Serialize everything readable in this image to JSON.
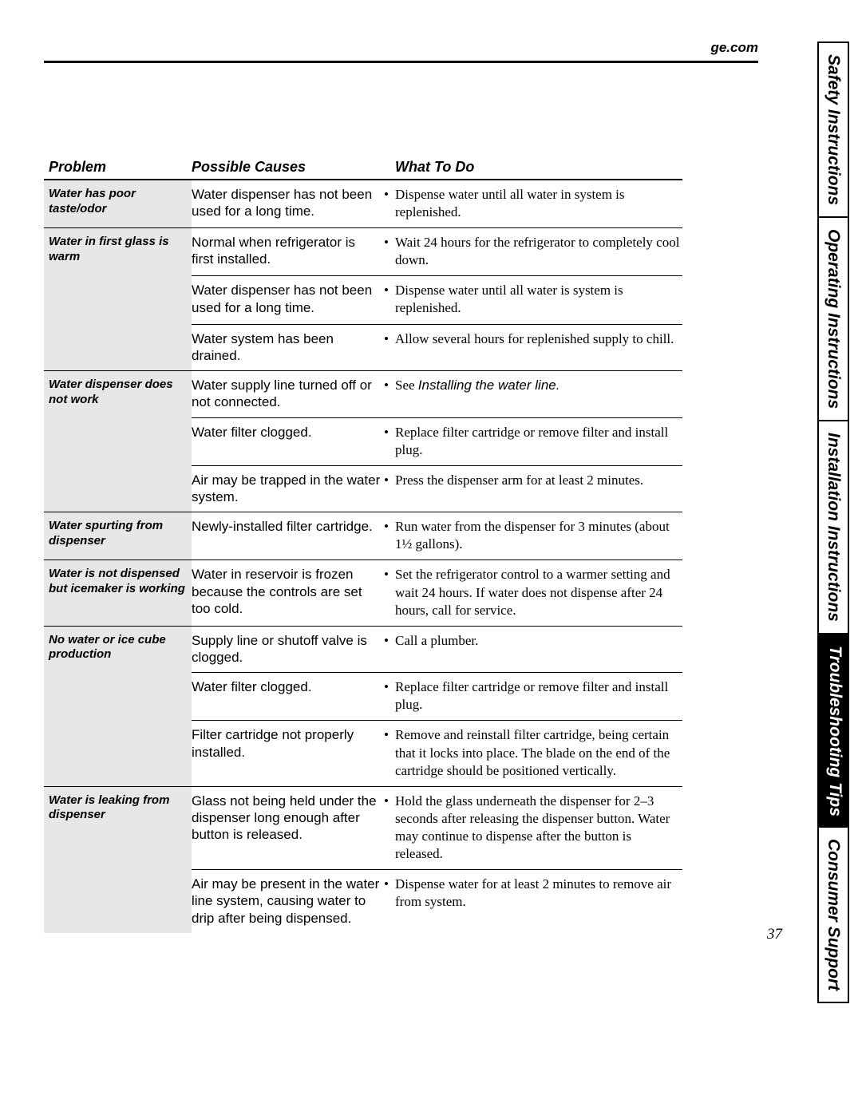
{
  "brand": "ge.com",
  "page_number": "37",
  "headers": {
    "problem": "Problem",
    "causes": "Possible Causes",
    "todo": "What To Do"
  },
  "side_tabs": [
    {
      "label": "Safety Instructions",
      "active": false
    },
    {
      "label": "Operating Instructions",
      "active": false
    },
    {
      "label": "Installation Instructions",
      "active": false
    },
    {
      "label": "Troubleshooting Tips",
      "active": true
    },
    {
      "label": "Consumer Support",
      "active": false
    }
  ],
  "groups": [
    {
      "problem": "Water has poor taste/odor",
      "rows": [
        {
          "cause": "Water dispenser has not been used for a long time.",
          "todo": "Dispense water until all water in system is replenished."
        }
      ]
    },
    {
      "problem": "Water in first glass is warm",
      "rows": [
        {
          "cause": "Normal when refrigerator is first installed.",
          "todo": "Wait 24 hours for the refrigerator to completely cool down."
        },
        {
          "cause": "Water dispenser has not been used for a long time.",
          "todo": "Dispense water until all water is system is replenished."
        },
        {
          "cause": "Water system has been drained.",
          "todo": "Allow several hours for replenished supply to chill."
        }
      ]
    },
    {
      "problem": "Water dispenser does not work",
      "rows": [
        {
          "cause": "Water supply line turned off or not connected.",
          "todo_prefix": "See ",
          "todo_emph": "Installing the water line."
        },
        {
          "cause": "Water filter clogged.",
          "todo": "Replace filter cartridge or remove filter and install plug."
        },
        {
          "cause": "Air may be trapped in the water system.",
          "todo": "Press the dispenser arm for at least 2 minutes."
        }
      ]
    },
    {
      "problem": "Water spurting from dispenser",
      "rows": [
        {
          "cause": "Newly-installed filter cartridge.",
          "todo": "Run water from the dispenser for 3 minutes (about 1½ gallons)."
        }
      ]
    },
    {
      "problem": "Water is not dispensed but icemaker is working",
      "rows": [
        {
          "cause": "Water in reservoir is frozen because the controls are set too cold.",
          "todo": "Set the refrigerator control to a warmer setting and wait 24 hours. If water does not dispense after 24 hours, call for service."
        }
      ]
    },
    {
      "problem": "No water or ice cube production",
      "rows": [
        {
          "cause": "Supply line or shutoff valve is clogged.",
          "todo": "Call a plumber."
        },
        {
          "cause": "Water filter clogged.",
          "todo": "Replace filter cartridge or remove filter and install plug."
        },
        {
          "cause": "Filter cartridge not properly installed.",
          "todo": "Remove and reinstall filter cartridge, being certain that it locks into place. The blade on the end of the cartridge should be positioned vertically."
        }
      ]
    },
    {
      "problem": "Water is leaking from dispenser",
      "rows": [
        {
          "cause": "Glass not being held under the dispenser long enough after button is released.",
          "todo": "Hold the glass underneath the dispenser for 2–3 seconds after releasing the dispenser button. Water may continue to dispense after the button is released."
        },
        {
          "cause": "Air may be present in the water line system, causing water to drip after being dispensed.",
          "todo": "Dispense water for at least 2 minutes to remove air from system."
        }
      ]
    }
  ]
}
